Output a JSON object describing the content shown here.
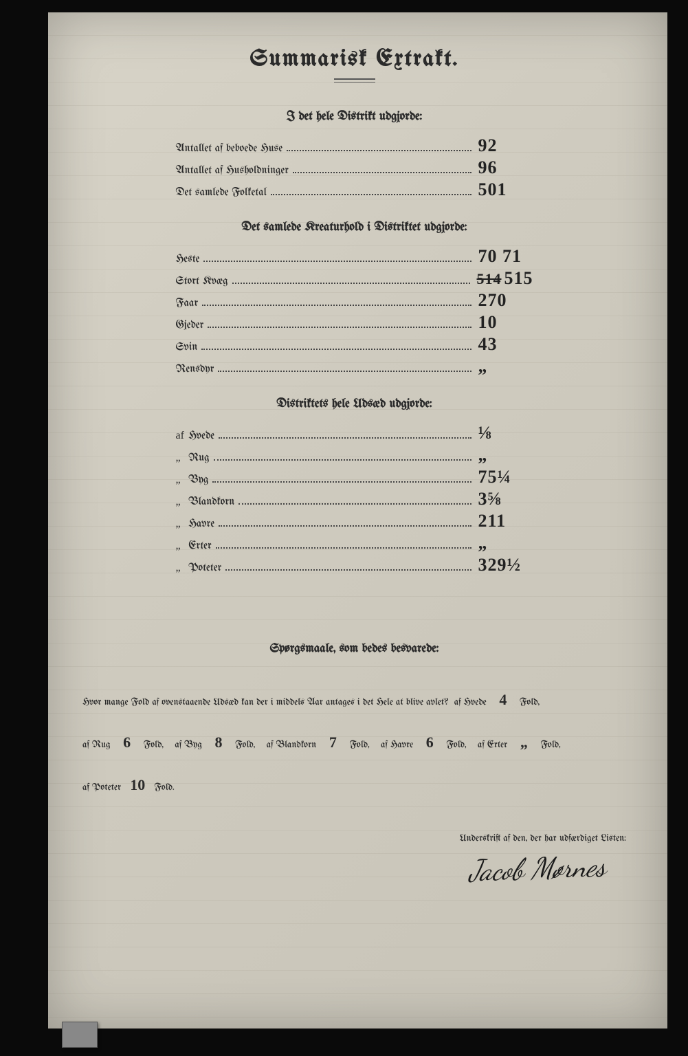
{
  "title": "Summarisk Extrakt.",
  "section1": {
    "heading": "I det hele Distrikt udgjorde:",
    "rows": [
      {
        "label": "Antallet af beboede Huse",
        "value": "92"
      },
      {
        "label": "Antallet af Husholdninger",
        "value": "96"
      },
      {
        "label": "Det samlede Folketal",
        "value": "501"
      }
    ]
  },
  "section2": {
    "heading": "Det samlede Kreaturhold i Distriktet udgjorde:",
    "rows": [
      {
        "label": "Heste",
        "value": "70 71"
      },
      {
        "label": "Stort Kvæg",
        "value_struck": "514",
        "value": "515"
      },
      {
        "label": "Faar",
        "value": "270"
      },
      {
        "label": "Gjeder",
        "value": "10"
      },
      {
        "label": "Svin",
        "value": "43"
      },
      {
        "label": "Rensdyr",
        "value": "„"
      }
    ]
  },
  "section3": {
    "heading": "Distriktets hele Udsæd udgjorde:",
    "rows": [
      {
        "prefix": "af",
        "label": "Hvede",
        "value": "⅛"
      },
      {
        "prefix": "„",
        "label": "Rug",
        "value": "„"
      },
      {
        "prefix": "„",
        "label": "Byg",
        "value": "75¼"
      },
      {
        "prefix": "„",
        "label": "Blandkorn",
        "value": "3⅝"
      },
      {
        "prefix": "„",
        "label": "Havre",
        "value": "211"
      },
      {
        "prefix": "„",
        "label": "Erter",
        "value": "„"
      },
      {
        "prefix": "„",
        "label": "Poteter",
        "value": "329½"
      }
    ]
  },
  "questions": {
    "heading": "Spørgsmaale, som bedes besvarede:",
    "intro": "Hvor mange Fold af ovenstaaende Udsæd kan der i middels Aar antages i det Hele at blive avlet?",
    "items": [
      {
        "label": "af Hvede",
        "value": "4",
        "unit": "Fold,"
      },
      {
        "label": "af Rug",
        "value": "6",
        "unit": "Fold,"
      },
      {
        "label": "af Byg",
        "value": "8",
        "unit": "Fold,"
      },
      {
        "label": "af Blandkorn",
        "value": "7",
        "unit": "Fold,"
      },
      {
        "label": "af Havre",
        "value": "6",
        "unit": "Fold,"
      },
      {
        "label": "af Erter",
        "value": "„",
        "unit": "Fold,"
      },
      {
        "label": "af Poteter",
        "value": "10",
        "unit": "Fold."
      }
    ]
  },
  "signature": {
    "label": "Underskrift af den, der har udfærdiget Listen:",
    "name": "Jacob Mørnes"
  }
}
